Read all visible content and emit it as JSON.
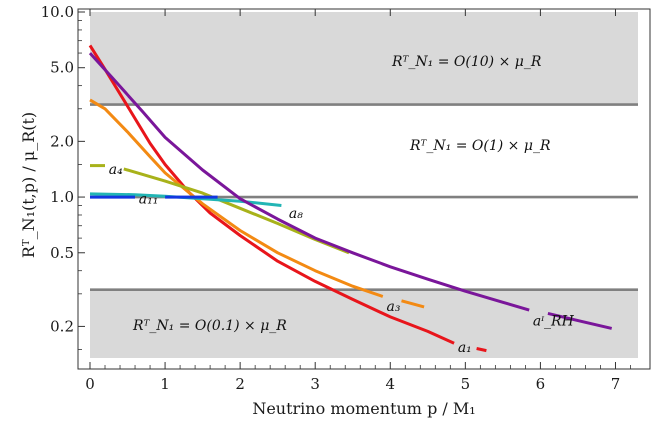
{
  "chart_data": {
    "type": "line",
    "xlabel": "Neutrino momentum p / M₁",
    "ylabel": "Rᵀ_N₁(t,p) / μ_R(t)",
    "xlim": [
      0,
      7.3
    ],
    "ylim": [
      0.135,
      10.0
    ],
    "yscale": "log",
    "xticks": [
      "0",
      "1",
      "2",
      "3",
      "4",
      "5",
      "6",
      "7"
    ],
    "yticks": [
      "0.2",
      "0.5",
      "1.0",
      "2.0",
      "5.0",
      "10.0"
    ],
    "grid": false,
    "shaded_regions": [
      {
        "name": "high",
        "from": 3.16,
        "to": 10.0,
        "label": "Rᵀ_N₁ = O(10) × μ_R"
      },
      {
        "name": "low",
        "from": 0.135,
        "to": 0.316,
        "label": "Rᵀ_N₁ = O(0.1) × μ_R"
      }
    ],
    "middle_region_label": "Rᵀ_N₁ = O(1) × μ_R",
    "hlines": [
      3.16,
      1.0,
      0.316
    ],
    "series": [
      {
        "name": "a₁",
        "color": "#e8151b",
        "x": [
          0,
          0.2,
          0.5,
          0.8,
          1,
          1.3,
          1.6,
          2,
          2.5,
          3,
          3.5,
          4,
          4.5,
          4.85
        ],
        "y": [
          6.6,
          4.9,
          3.1,
          1.95,
          1.5,
          1.08,
          0.82,
          0.62,
          0.45,
          0.35,
          0.28,
          0.225,
          0.188,
          0.162
        ],
        "tail": {
          "x": [
            5.15,
            5.28
          ],
          "y": [
            0.152,
            0.148
          ]
        }
      },
      {
        "name": "a₃",
        "color": "#f38a13",
        "x": [
          0,
          0.2,
          0.5,
          0.8,
          1,
          1.5,
          2,
          2.5,
          3,
          3.5,
          3.9
        ],
        "y": [
          3.35,
          3.0,
          2.25,
          1.65,
          1.35,
          0.92,
          0.66,
          0.5,
          0.4,
          0.33,
          0.29
        ],
        "tail": {
          "x": [
            4.15,
            4.45
          ],
          "y": [
            0.275,
            0.255
          ]
        }
      },
      {
        "name": "a₄",
        "color": "#a8b21a",
        "x": [
          0,
          0.2
        ],
        "y": [
          1.48,
          1.48
        ],
        "tail": {
          "x": [
            0.45,
            1,
            1.5,
            2,
            2.5,
            3,
            3.45
          ],
          "y": [
            1.42,
            1.22,
            1.05,
            0.87,
            0.72,
            0.59,
            0.5
          ]
        }
      },
      {
        "name": "a₈",
        "color": "#22b5b5",
        "x": [
          0,
          0.6,
          1,
          1.5,
          2,
          2.55
        ],
        "y": [
          1.04,
          1.03,
          1.01,
          0.98,
          0.95,
          0.9
        ]
      },
      {
        "name": "a₁₁",
        "color": "#1237e0",
        "x": [
          0,
          0.6
        ],
        "y": [
          1.0,
          1.0
        ],
        "tail": {
          "x": [
            1.0,
            1.7
          ],
          "y": [
            1.0,
            1.0
          ]
        }
      },
      {
        "name": "aᶦ_RH",
        "color": "#7a169a",
        "x": [
          0,
          0.3,
          0.7,
          1,
          1.5,
          2,
          2.5,
          3,
          3.5,
          4,
          4.5,
          5,
          5.5,
          5.85
        ],
        "y": [
          6.0,
          4.4,
          2.9,
          2.1,
          1.4,
          0.98,
          0.76,
          0.6,
          0.5,
          0.42,
          0.36,
          0.31,
          0.27,
          0.245
        ],
        "tail": {
          "x": [
            6.1,
            6.5,
            6.95
          ],
          "y": [
            0.235,
            0.215,
            0.195
          ]
        }
      }
    ],
    "annotations": [
      {
        "text": "a₁",
        "x": 4.9,
        "y": 0.155
      },
      {
        "text": "a₃",
        "x": 3.95,
        "y": 0.258
      },
      {
        "text": "a₄",
        "x": 0.25,
        "y": 1.42
      },
      {
        "text": "a₈",
        "x": 2.65,
        "y": 0.82
      },
      {
        "text": "a₁₁",
        "x": 0.65,
        "y": 0.98
      },
      {
        "text": "aᶦ_RH",
        "x": 5.9,
        "y": 0.215
      }
    ]
  }
}
